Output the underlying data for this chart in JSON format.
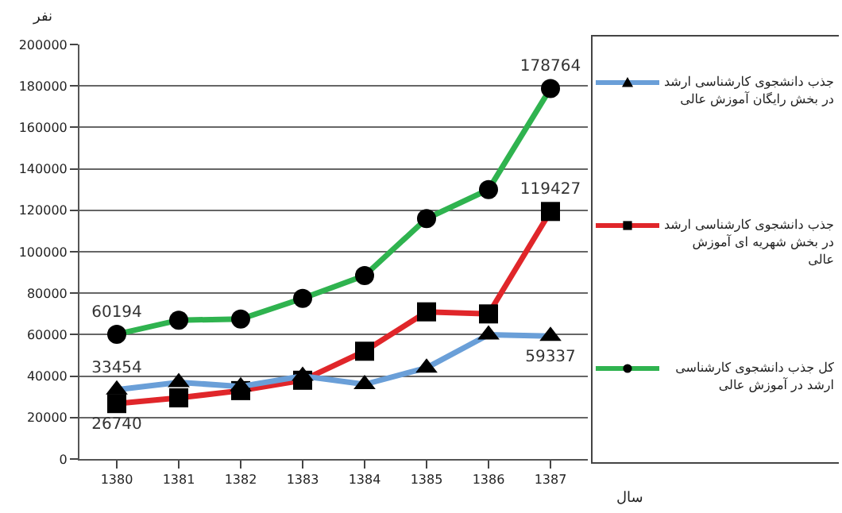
{
  "chart_data": {
    "type": "line",
    "ylabel": "نفر",
    "xlabel": "سال",
    "categories": [
      "1380",
      "1381",
      "1382",
      "1383",
      "1384",
      "1385",
      "1386",
      "1387"
    ],
    "ylim": [
      0,
      200000
    ],
    "yticks": [
      0,
      20000,
      40000,
      60000,
      80000,
      100000,
      120000,
      140000,
      160000,
      180000,
      200000
    ],
    "grid": "y",
    "legend": "right",
    "series": [
      {
        "name": "جذب دانشجوی کارشناسی ارشد در بخش رایگان آموزش عالی",
        "color": "#6a9fd8",
        "marker": "triangle",
        "values": [
          33454,
          37000,
          35000,
          40000,
          36000,
          44000,
          60000,
          59337
        ],
        "value_labels": [
          "33454",
          null,
          null,
          null,
          null,
          null,
          null,
          "59337"
        ]
      },
      {
        "name": "جذب دانشجوی کارشناسی ارشد در بخش شهریه ای آموزش عالی",
        "color": "#e0262a",
        "marker": "square",
        "values": [
          26740,
          29500,
          33000,
          38000,
          52000,
          71000,
          70000,
          119427
        ],
        "value_labels": [
          "26740",
          null,
          null,
          null,
          null,
          null,
          null,
          "119427"
        ]
      },
      {
        "name": "کل جذب دانشجوی کارشناسی ارشد در آموزش عالی",
        "color": "#2fb34f",
        "marker": "circle",
        "values": [
          60194,
          67000,
          67500,
          77500,
          88500,
          116000,
          130000,
          178764
        ],
        "value_labels": [
          "60194",
          null,
          null,
          null,
          null,
          null,
          null,
          "178764"
        ]
      }
    ]
  }
}
